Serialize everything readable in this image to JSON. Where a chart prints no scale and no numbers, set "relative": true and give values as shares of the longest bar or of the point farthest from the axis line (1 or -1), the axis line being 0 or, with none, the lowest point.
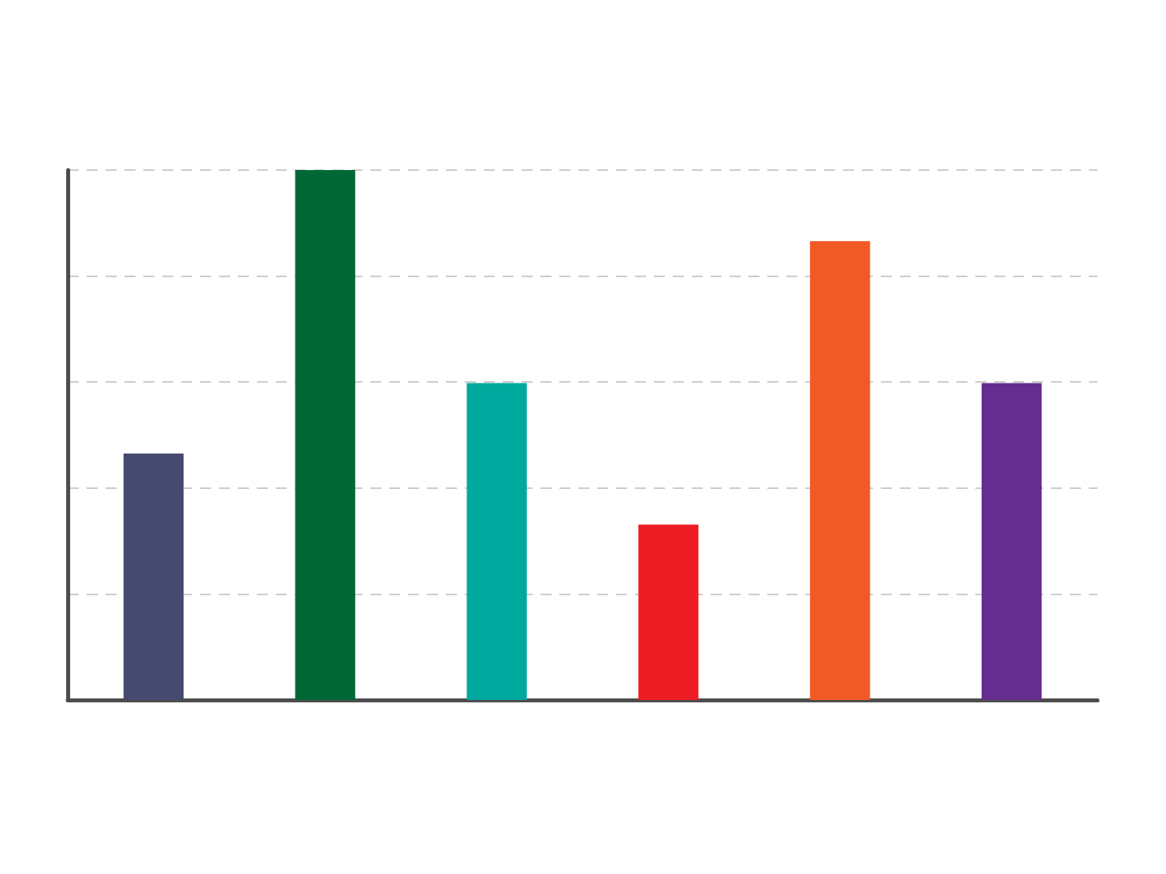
{
  "chart_data": {
    "type": "bar",
    "relative": true,
    "grid": "y",
    "categories": [
      null,
      null,
      null,
      null,
      null,
      null
    ],
    "values": [
      0.465,
      1,
      0.598,
      0.331,
      0.866,
      0.598
    ],
    "colors": [
      "#454a6e",
      "#006837",
      "#00a99d",
      "#ed1c24",
      "#f15a24",
      "#662d91"
    ]
  }
}
